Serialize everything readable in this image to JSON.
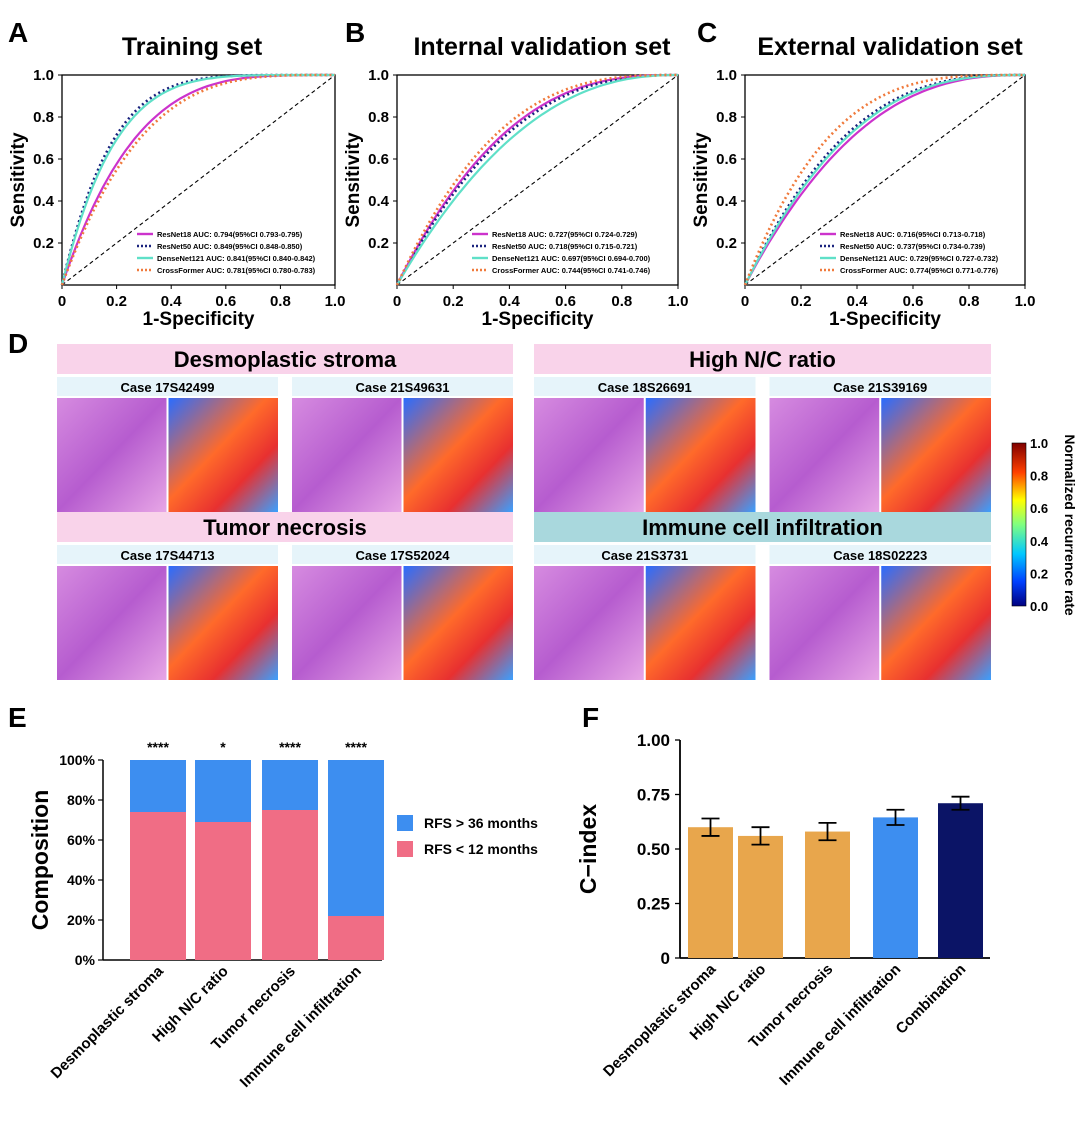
{
  "panel_labels": [
    "A",
    "B",
    "C",
    "D",
    "E",
    "F"
  ],
  "roc_panels": [
    {
      "title": "Training set",
      "xlabel": "1-Specificity",
      "ylabel": "Sensitivity",
      "xticks": [
        "0",
        "0.2",
        "0.4",
        "0.6",
        "0.8",
        "1.0"
      ],
      "yticks": [
        "0.2",
        "0.4",
        "0.6",
        "0.8",
        "1.0"
      ],
      "legend": [
        "ResNet18 AUC: 0.794(95%CI 0.793-0.795)",
        "ResNet50 AUC: 0.849(95%CI 0.848-0.850)",
        "DenseNet121 AUC: 0.841(95%CI 0.840-0.842)",
        "CrossFormer AUC: 0.781(95%CI 0.780-0.783)"
      ],
      "auc": [
        0.794,
        0.849,
        0.841,
        0.781
      ]
    },
    {
      "title": "Internal validation set",
      "xlabel": "1-Specificity",
      "ylabel": "Sensitivity",
      "xticks": [
        "0",
        "0.2",
        "0.4",
        "0.6",
        "0.8",
        "1.0"
      ],
      "yticks": [
        "0.2",
        "0.4",
        "0.6",
        "0.8",
        "1.0"
      ],
      "legend": [
        "ResNet18 AUC: 0.727(95%CI 0.724-0.729)",
        "ResNet50 AUC: 0.718(95%CI 0.715-0.721)",
        "DenseNet121 AUC: 0.697(95%CI 0.694-0.700)",
        "CrossFormer AUC: 0.744(95%CI 0.741-0.746)"
      ],
      "auc": [
        0.727,
        0.718,
        0.697,
        0.744
      ]
    },
    {
      "title": "External validation set",
      "xlabel": "1-Specificity",
      "ylabel": "Sensitivity",
      "xticks": [
        "0",
        "0.2",
        "0.4",
        "0.6",
        "0.8",
        "1.0"
      ],
      "yticks": [
        "0.2",
        "0.4",
        "0.6",
        "0.8",
        "1.0"
      ],
      "legend": [
        "ResNet18 AUC: 0.716(95%CI 0.713-0.718)",
        "ResNet50 AUC: 0.737(95%CI 0.734-0.739)",
        "DenseNet121 AUC: 0.729(95%CI 0.727-0.732)",
        "CrossFormer AUC: 0.774(95%CI 0.771-0.776)"
      ],
      "auc": [
        0.716,
        0.737,
        0.729,
        0.774
      ]
    }
  ],
  "roc_series_styles": [
    {
      "color": "#cc33cc",
      "dash": "solid"
    },
    {
      "color": "#1a237e",
      "dash": "dotted"
    },
    {
      "color": "#5fe0c8",
      "dash": "solid"
    },
    {
      "color": "#f07a3c",
      "dash": "dotted"
    }
  ],
  "heatmap_panel": {
    "groups": [
      {
        "title": "Desmoplastic stroma",
        "color": "#f9d3ea",
        "cases": [
          "Case 17S42499",
          "Case 21S49631"
        ]
      },
      {
        "title": "High N/C ratio",
        "color": "#f9d3ea",
        "cases": [
          "Case 18S26691",
          "Case 21S39169"
        ]
      },
      {
        "title": "Tumor necrosis",
        "color": "#f9d3ea",
        "cases": [
          "Case 17S44713",
          "Case 17S52024"
        ]
      },
      {
        "title": "Immune cell infiltration",
        "color": "#a9d8dd",
        "cases": [
          "Case 21S3731",
          "Case 18S02223"
        ]
      }
    ],
    "colorbar": {
      "label": "Normalized recurrence rate",
      "ticks": [
        "0.0",
        "0.2",
        "0.4",
        "0.6",
        "0.8",
        "1.0"
      ]
    }
  },
  "chart_data": [
    {
      "type": "bar",
      "panel": "E",
      "stacked": true,
      "categories": [
        "Desmoplastic stroma",
        "High N/C ratio",
        "Tumor necrosis",
        "Immune cell infiltration"
      ],
      "series": [
        {
          "name": "RFS < 12 months",
          "color": "#f06d85",
          "values": [
            74,
            69,
            75,
            22
          ]
        },
        {
          "name": "RFS > 36 months",
          "color": "#3d8ef0",
          "values": [
            26,
            31,
            25,
            78
          ]
        }
      ],
      "significance": [
        "****",
        "*",
        "****",
        "****"
      ],
      "ylabel": "Composition",
      "yticks": [
        "0%",
        "20%",
        "40%",
        "60%",
        "80%",
        "100%"
      ],
      "ylim": [
        0,
        100
      ],
      "legend_order": [
        "RFS > 36 months",
        "RFS < 12 months"
      ],
      "legend_position": "right"
    },
    {
      "type": "bar",
      "panel": "F",
      "categories": [
        "Desmoplastic stroma",
        "High N/C ratio",
        "Tumor necrosis",
        "Immune cell infiltration",
        "Combination"
      ],
      "values": [
        0.6,
        0.56,
        0.58,
        0.645,
        0.71
      ],
      "errors": [
        0.04,
        0.04,
        0.04,
        0.035,
        0.03
      ],
      "colors": [
        "#e8a64c",
        "#e8a64c",
        "#e8a64c",
        "#3d8ef0",
        "#0b1466"
      ],
      "ylabel": "C−index",
      "yticks": [
        "0",
        "0.25",
        "0.50",
        "0.75",
        "1.00"
      ],
      "ylim": [
        0,
        1
      ]
    }
  ]
}
